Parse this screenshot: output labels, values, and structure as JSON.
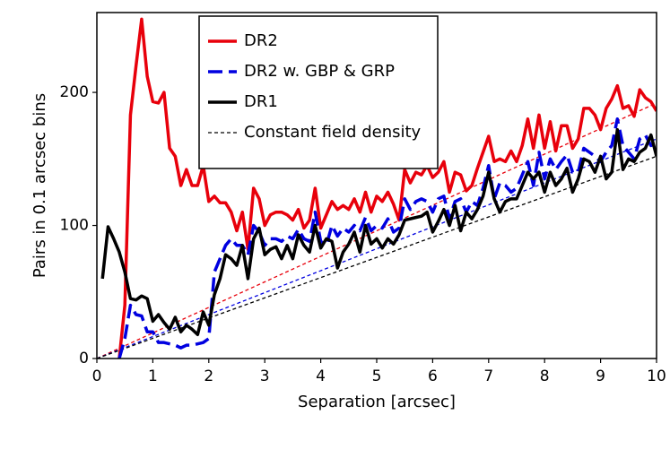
{
  "chart_data": {
    "type": "line",
    "xlabel": "Separation [arcsec]",
    "ylabel": "Pairs in 0.1 arcsec bins",
    "xlim": [
      0,
      10
    ],
    "ylim": [
      0,
      260
    ],
    "xticks": [
      0,
      1,
      2,
      3,
      4,
      5,
      6,
      7,
      8,
      9,
      10
    ],
    "yticks": [
      0,
      100,
      200
    ],
    "legend": "upper center",
    "x": [
      0.1,
      0.2,
      0.3,
      0.4,
      0.5,
      0.6,
      0.7,
      0.8,
      0.9,
      1.0,
      1.1,
      1.2,
      1.3,
      1.4,
      1.5,
      1.6,
      1.7,
      1.8,
      1.9,
      2.0,
      2.1,
      2.2,
      2.3,
      2.4,
      2.5,
      2.6,
      2.7,
      2.8,
      2.9,
      3.0,
      3.1,
      3.2,
      3.3,
      3.4,
      3.5,
      3.6,
      3.7,
      3.8,
      3.9,
      4.0,
      4.1,
      4.2,
      4.3,
      4.4,
      4.5,
      4.6,
      4.7,
      4.8,
      4.9,
      5.0,
      5.1,
      5.2,
      5.3,
      5.4,
      5.5,
      5.6,
      5.7,
      5.8,
      5.9,
      6.0,
      6.1,
      6.2,
      6.3,
      6.4,
      6.5,
      6.6,
      6.7,
      6.8,
      6.9,
      7.0,
      7.1,
      7.2,
      7.3,
      7.4,
      7.5,
      7.6,
      7.7,
      7.8,
      7.9,
      8.0,
      8.1,
      8.2,
      8.3,
      8.4,
      8.5,
      8.6,
      8.7,
      8.8,
      8.9,
      9.0,
      9.1,
      9.2,
      9.3,
      9.4,
      9.5,
      9.6,
      9.7,
      9.8,
      9.9,
      10.0
    ],
    "series": [
      {
        "name": "DR2",
        "color": "#e8000b",
        "dash": "solid",
        "values": [
          null,
          null,
          null,
          0,
          40,
          183,
          220,
          255,
          212,
          193,
          192,
          200,
          158,
          152,
          130,
          142,
          130,
          130,
          145,
          118,
          122,
          117,
          117,
          110,
          96,
          110,
          82,
          128,
          120,
          100,
          108,
          110,
          110,
          108,
          104,
          112,
          98,
          104,
          128,
          98,
          108,
          118,
          112,
          115,
          112,
          120,
          110,
          125,
          110,
          122,
          118,
          125,
          116,
          104,
          142,
          132,
          140,
          138,
          145,
          136,
          140,
          148,
          125,
          140,
          138,
          126,
          130,
          143,
          155,
          167,
          148,
          150,
          148,
          156,
          148,
          160,
          180,
          158,
          183,
          158,
          178,
          156,
          175,
          175,
          158,
          165,
          188,
          188,
          183,
          172,
          188,
          195,
          205,
          188,
          190,
          182,
          202,
          196,
          193,
          186
        ]
      },
      {
        "name": "DR2 w. GBP & GRP",
        "color": "#0000e0",
        "dash": "dashed",
        "values": [
          null,
          null,
          null,
          0,
          15,
          40,
          33,
          32,
          20,
          20,
          12,
          12,
          11,
          10,
          8,
          10,
          10,
          11,
          12,
          15,
          65,
          75,
          85,
          90,
          85,
          85,
          78,
          100,
          95,
          85,
          90,
          90,
          88,
          92,
          90,
          97,
          90,
          88,
          110,
          88,
          85,
          100,
          92,
          98,
          95,
          100,
          96,
          106,
          96,
          100,
          98,
          105,
          95,
          98,
          120,
          112,
          118,
          120,
          118,
          110,
          120,
          122,
          105,
          118,
          120,
          110,
          118,
          115,
          128,
          145,
          120,
          132,
          130,
          125,
          128,
          138,
          148,
          130,
          155,
          135,
          150,
          142,
          148,
          153,
          140,
          140,
          158,
          155,
          152,
          148,
          155,
          160,
          180,
          160,
          155,
          150,
          165,
          168,
          160,
          162
        ]
      },
      {
        "name": "DR1",
        "color": "#000000",
        "dash": "solid",
        "values": [
          60,
          99,
          90,
          80,
          65,
          45,
          44,
          47,
          45,
          28,
          33,
          27,
          22,
          31,
          20,
          25,
          22,
          18,
          35,
          25,
          48,
          60,
          78,
          75,
          70,
          85,
          60,
          90,
          98,
          78,
          82,
          84,
          75,
          85,
          75,
          93,
          85,
          80,
          100,
          83,
          90,
          88,
          68,
          80,
          86,
          95,
          80,
          100,
          86,
          90,
          83,
          90,
          86,
          93,
          104,
          105,
          106,
          107,
          110,
          95,
          103,
          112,
          100,
          115,
          96,
          110,
          105,
          112,
          122,
          140,
          120,
          110,
          118,
          120,
          120,
          130,
          140,
          135,
          140,
          125,
          140,
          130,
          135,
          143,
          125,
          135,
          150,
          148,
          140,
          152,
          135,
          140,
          172,
          142,
          150,
          148,
          155,
          158,
          168,
          152
        ]
      }
    ],
    "field_density": {
      "name": "Constant field density",
      "color": "#000000",
      "x": [
        0,
        10
      ],
      "lines": [
        {
          "color": "#e8000b",
          "values": [
            0,
            192
          ]
        },
        {
          "color": "#0000e0",
          "values": [
            0,
            165
          ]
        },
        {
          "color": "#000000",
          "values": [
            0,
            152
          ]
        }
      ]
    }
  }
}
